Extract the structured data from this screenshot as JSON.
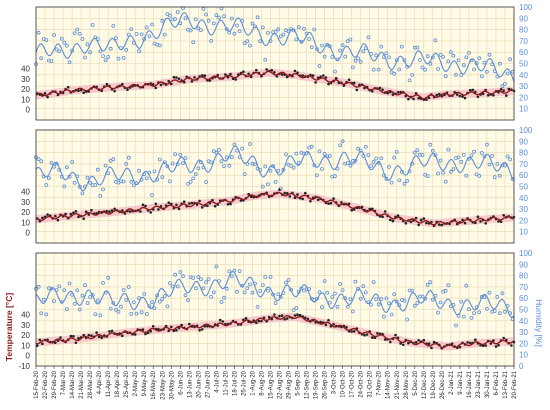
{
  "chart_data": [
    {
      "type": "line",
      "panel": "top",
      "xlim": [
        "15-Feb-20",
        "20-Feb-21"
      ],
      "temperature_axis": {
        "ticks": [
          0,
          10,
          20,
          30,
          40
        ],
        "ylim": [
          -10,
          100
        ]
      },
      "humidity_axis": {
        "ticks": [
          10,
          20,
          30,
          40,
          50,
          60,
          70,
          80,
          90,
          100
        ],
        "ylim": [
          0,
          100
        ]
      },
      "grid": true,
      "series": [
        {
          "color": "#8b1a1a",
          "points": [
            [
              0,
              14
            ],
            [
              30,
              19
            ],
            [
              60,
              22
            ],
            [
              90,
              24
            ],
            [
              120,
              30
            ],
            [
              150,
              32
            ],
            [
              180,
              36
            ],
            [
              200,
              34
            ],
            [
              240,
              26
            ],
            [
              270,
              18
            ],
            [
              300,
              12
            ],
            [
              320,
              15
            ],
            [
              340,
              16
            ],
            [
              371,
              18
            ]
          ]
        },
        {
          "color": "#5b8ed6",
          "points": [
            [
              0,
              60
            ],
            [
              20,
              58
            ],
            [
              40,
              70
            ],
            [
              60,
              62
            ],
            [
              90,
              78
            ],
            [
              120,
              88
            ],
            [
              150,
              82
            ],
            [
              180,
              75
            ],
            [
              210,
              70
            ],
            [
              240,
              60
            ],
            [
              270,
              55
            ],
            [
              300,
              52
            ],
            [
              330,
              50
            ],
            [
              371,
              40
            ]
          ]
        }
      ]
    },
    {
      "type": "line",
      "panel": "middle",
      "xlim": [
        "15-Feb-20",
        "20-Feb-21"
      ],
      "temperature_axis": {
        "ticks": [
          0,
          10,
          20,
          30,
          40
        ],
        "ylim": [
          -10,
          100
        ]
      },
      "humidity_axis": {
        "ticks": [
          10,
          20,
          30,
          40,
          50,
          60,
          70,
          80,
          90,
          100
        ],
        "ylim": [
          0,
          100
        ]
      },
      "grid": true,
      "series": [
        {
          "color": "#8b1a1a",
          "points": [
            [
              0,
              13
            ],
            [
              30,
              17
            ],
            [
              60,
              20
            ],
            [
              90,
              24
            ],
            [
              120,
              27
            ],
            [
              150,
              31
            ],
            [
              170,
              36
            ],
            [
              190,
              38
            ],
            [
              220,
              33
            ],
            [
              250,
              24
            ],
            [
              280,
              14
            ],
            [
              310,
              9
            ],
            [
              340,
              12
            ],
            [
              371,
              15
            ]
          ]
        },
        {
          "color": "#5b8ed6",
          "points": [
            [
              0,
              60
            ],
            [
              20,
              62
            ],
            [
              40,
              55
            ],
            [
              60,
              58
            ],
            [
              90,
              62
            ],
            [
              120,
              68
            ],
            [
              150,
              78
            ],
            [
              180,
              66
            ],
            [
              210,
              72
            ],
            [
              240,
              76
            ],
            [
              270,
              64
            ],
            [
              300,
              70
            ],
            [
              330,
              72
            ],
            [
              371,
              65
            ]
          ]
        }
      ]
    },
    {
      "type": "line",
      "panel": "bottom",
      "xlim": [
        "15-Feb-20",
        "20-Feb-21"
      ],
      "temperature_axis": {
        "ticks": [
          -10,
          0,
          10,
          20,
          30,
          40
        ],
        "ylim": [
          -10,
          100
        ]
      },
      "humidity_axis": {
        "ticks": [
          0,
          10,
          20,
          30,
          40,
          50,
          60,
          70,
          80,
          90,
          100
        ],
        "ylim": [
          0,
          100
        ]
      },
      "ylabel": "Temperature [°C]",
      "y2label": "Humidity [%]",
      "grid": true,
      "series": [
        {
          "color": "#8b1a1a",
          "points": [
            [
              0,
              13
            ],
            [
              30,
              16
            ],
            [
              60,
              21
            ],
            [
              90,
              25
            ],
            [
              120,
              28
            ],
            [
              150,
              31
            ],
            [
              180,
              36
            ],
            [
              200,
              38
            ],
            [
              230,
              30
            ],
            [
              260,
              21
            ],
            [
              290,
              13
            ],
            [
              320,
              9
            ],
            [
              340,
              12
            ],
            [
              371,
              14
            ]
          ]
        },
        {
          "color": "#5b8ed6",
          "points": [
            [
              0,
              58
            ],
            [
              20,
              60
            ],
            [
              40,
              65
            ],
            [
              60,
              55
            ],
            [
              90,
              60
            ],
            [
              120,
              70
            ],
            [
              150,
              75
            ],
            [
              180,
              68
            ],
            [
              210,
              62
            ],
            [
              240,
              60
            ],
            [
              270,
              56
            ],
            [
              300,
              58
            ],
            [
              330,
              55
            ],
            [
              371,
              52
            ]
          ]
        }
      ]
    }
  ],
  "x_tick_labels": [
    "15-Feb-20",
    "22-Feb-20",
    "29-Feb-20",
    "7-Mar-20",
    "14-Mar-20",
    "21-Mar-20",
    "28-Mar-20",
    "4-Apr-20",
    "11-Apr-20",
    "18-Apr-20",
    "25-Apr-20",
    "2-May-20",
    "9-May-20",
    "16-May-20",
    "23-May-20",
    "30-May-20",
    "6-Jun-20",
    "13-Jun-20",
    "20-Jun-20",
    "27-Jun-20",
    "4-Jul-20",
    "11-Jul-20",
    "18-Jul-20",
    "25-Jul-20",
    "1-Aug-20",
    "8-Aug-20",
    "15-Aug-20",
    "22-Aug-20",
    "29-Aug-20",
    "5-Sep-20",
    "12-Sep-20",
    "19-Sep-20",
    "26-Sep-20",
    "3-Oct-20",
    "10-Oct-20",
    "17-Oct-20",
    "24-Oct-20",
    "31-Oct-20",
    "7-Nov-20",
    "14-Nov-20",
    "21-Nov-20",
    "28-Nov-20",
    "5-Dec-20",
    "12-Dec-20",
    "19-Dec-20",
    "26-Dec-20",
    "2-Jan-21",
    "9-Jan-21",
    "16-Jan-21",
    "23-Jan-21",
    "30-Jan-21",
    "6-Feb-21",
    "13-Feb-21",
    "20-Feb-21"
  ],
  "ylabel_left": "Temperature [°C]",
  "ylabel_right": "Humidity [%]",
  "colors": {
    "temperature": "#8b1a1a",
    "temperature_band": "#f4b9c6",
    "humidity": "#5b8ed6",
    "plot_background": "#fffbe6",
    "grid": "#e6d8b0"
  }
}
